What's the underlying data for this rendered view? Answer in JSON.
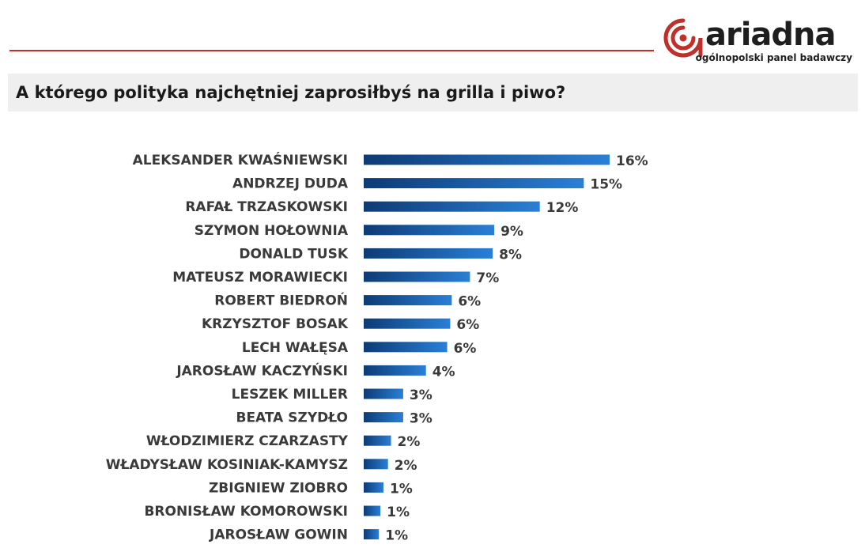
{
  "header": {
    "logo_word": "ariadna",
    "logo_tagline": "ogólnopolski panel badawczy",
    "title": "A którego polityka najchętniej zaprosiłbyś na grilla i piwo?"
  },
  "colors": {
    "accent_red": "#c0302b",
    "bar_dark": "#0d3b75",
    "bar_light": "#2a7fd6"
  },
  "chart_data": {
    "type": "bar",
    "orientation": "horizontal",
    "categories": [
      "ALEKSANDER KWAŚNIEWSKI",
      "ANDRZEJ DUDA",
      "RAFAŁ TRZASKOWSKI",
      "SZYMON HOŁOWNIA",
      "DONALD TUSK",
      "MATEUSZ MORAWIECKI",
      "ROBERT BIEDROŃ",
      "KRZYSZTOF BOSAK",
      "LECH WAŁĘSA",
      "JAROSŁAW KACZYŃSKI",
      "LESZEK MILLER",
      "BEATA SZYDŁO",
      "WŁODZIMIERZ CZARZASTY",
      "WŁADYSŁAW KOSINIAK-KAMYSZ",
      "ZBIGNIEW ZIOBRO",
      "BRONISŁAW KOMOROWSKI",
      "JAROSŁAW GOWIN"
    ],
    "values": [
      16.2,
      14.5,
      11.6,
      8.6,
      8.5,
      7.0,
      5.8,
      5.7,
      5.5,
      4.1,
      2.6,
      2.6,
      1.8,
      1.6,
      1.3,
      1.1,
      1.0
    ],
    "value_labels": [
      "16%",
      "15%",
      "12%",
      "9%",
      "8%",
      "7%",
      "6%",
      "6%",
      "6%",
      "4%",
      "3%",
      "3%",
      "2%",
      "2%",
      "1%",
      "1%",
      "1%"
    ],
    "title": "A którego polityka najchętniej zaprosiłbyś na grilla i piwo?",
    "xlim": [
      0,
      16.2
    ],
    "grid": false
  }
}
